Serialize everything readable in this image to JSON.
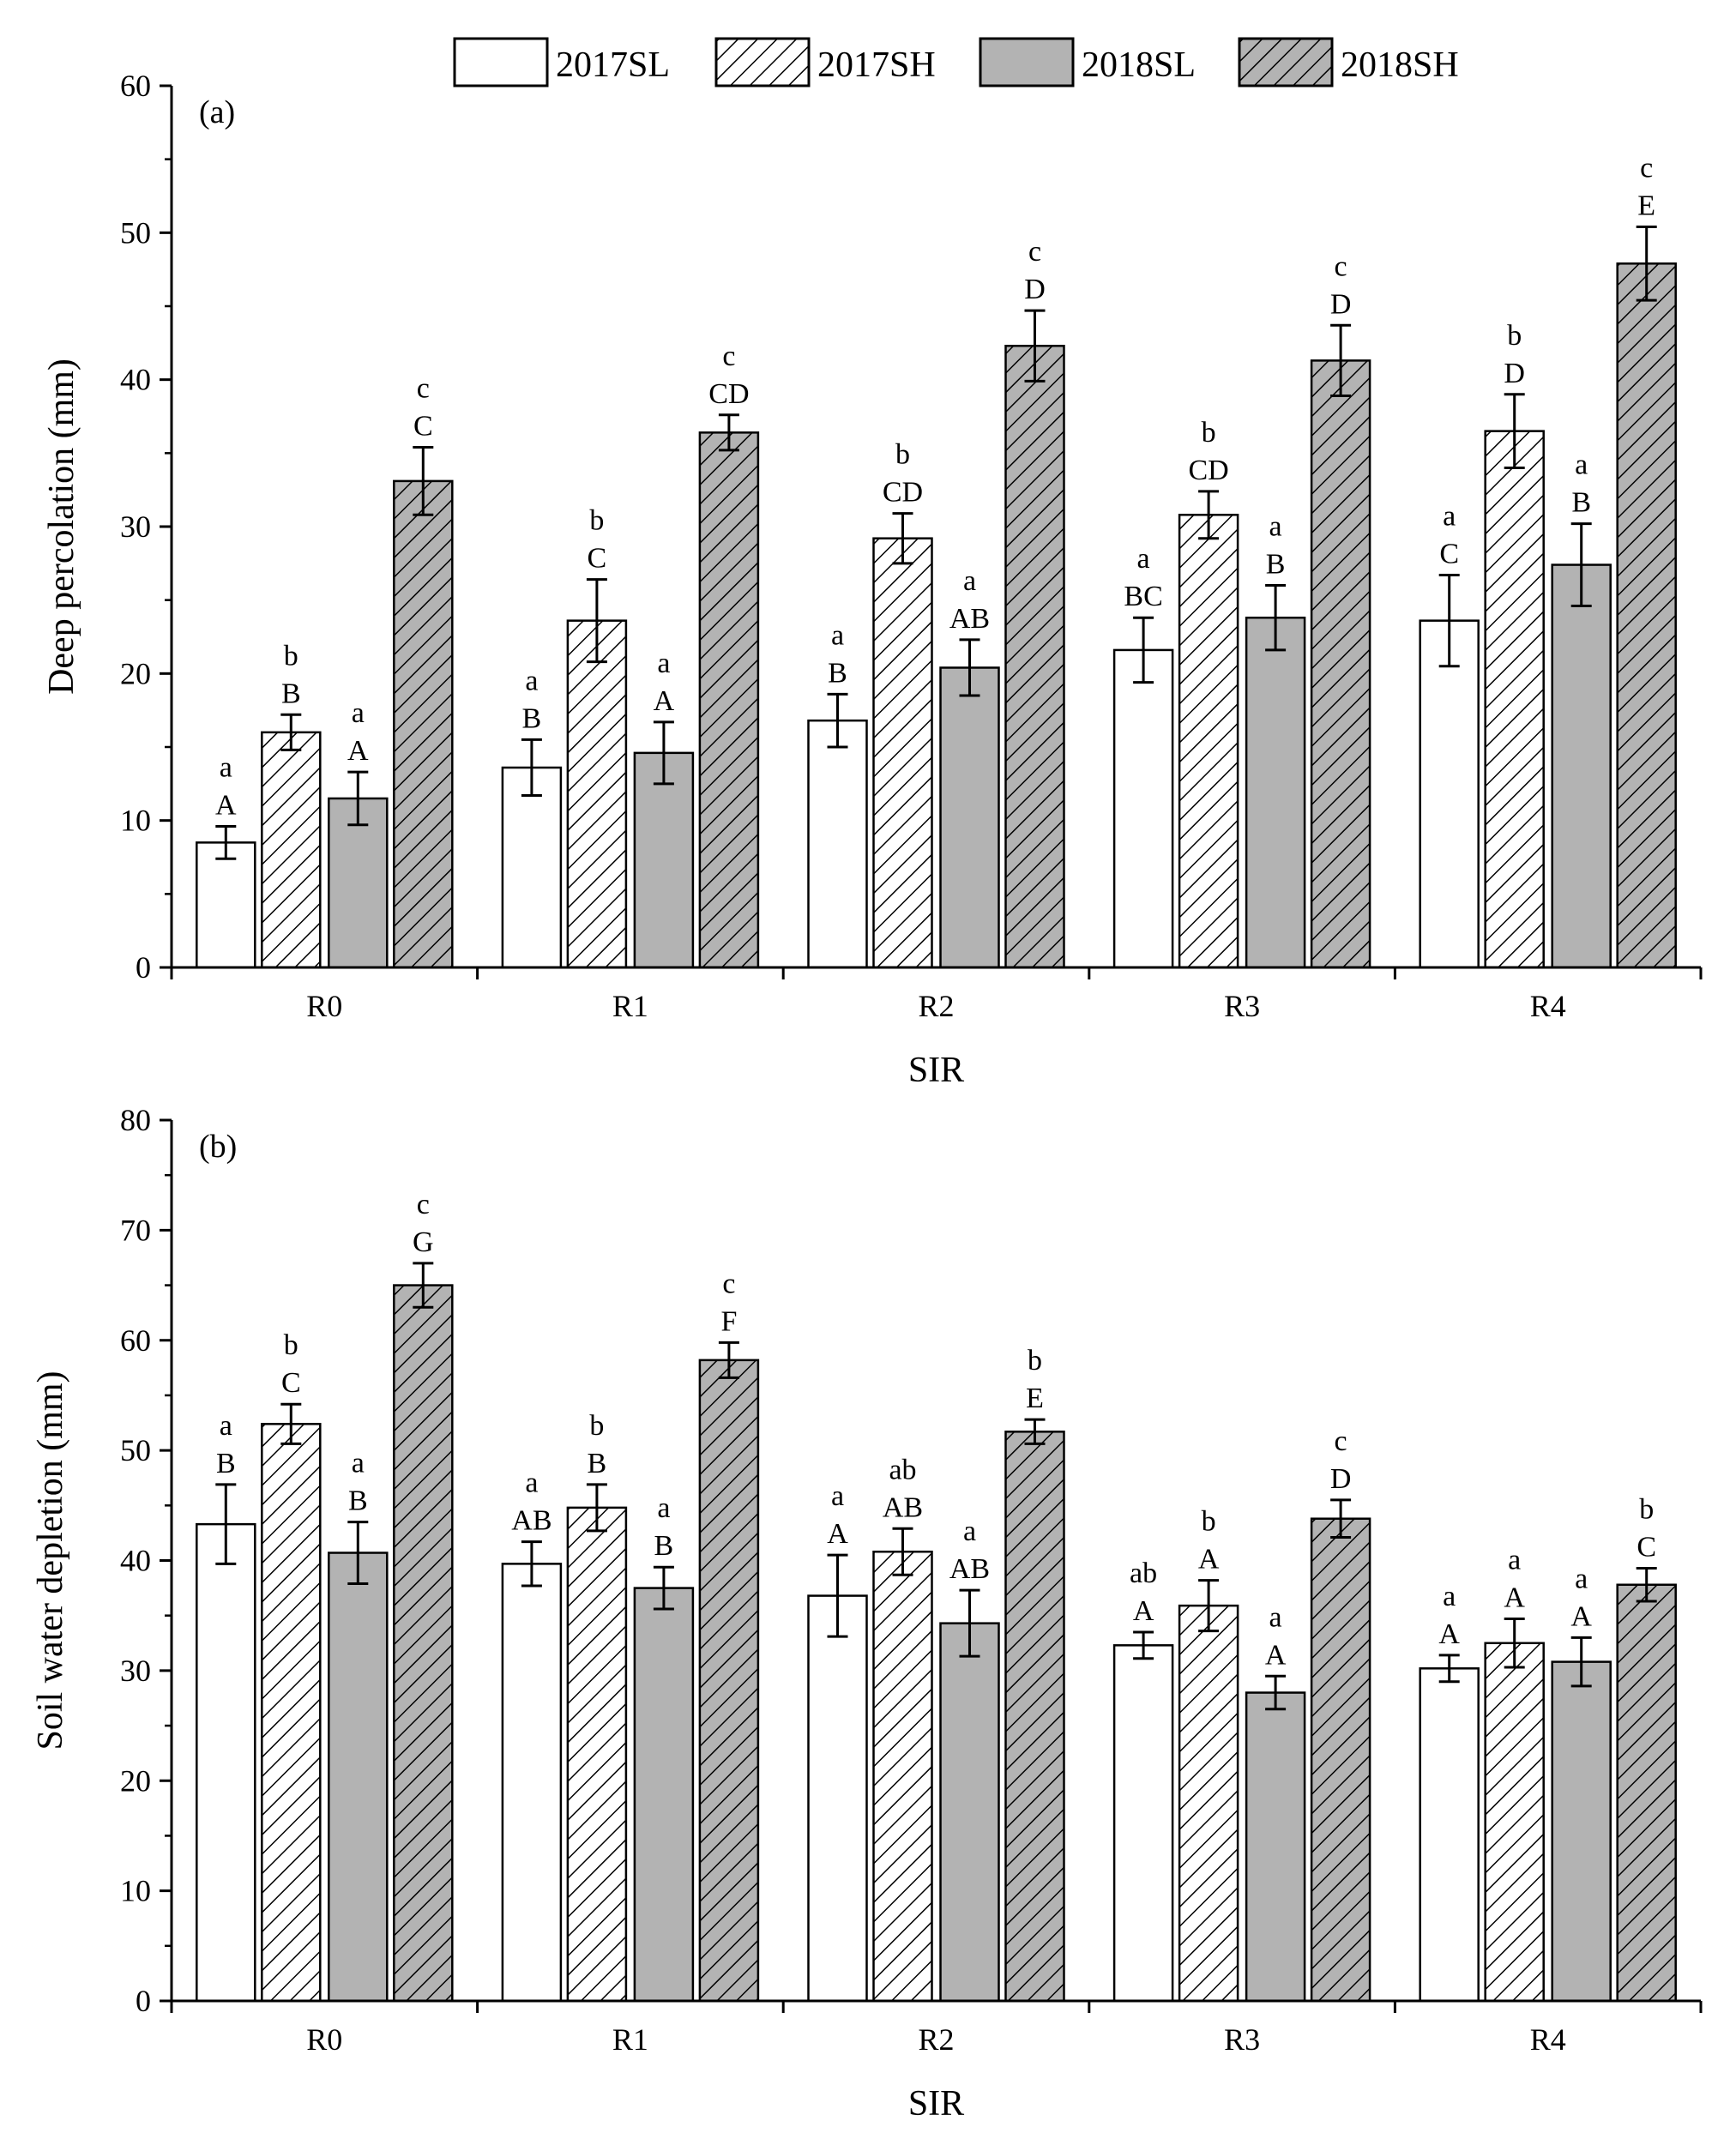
{
  "legend": [
    {
      "key": "2017SL",
      "label": "2017SL"
    },
    {
      "key": "2017SH",
      "label": "2017SH"
    },
    {
      "key": "2018SL",
      "label": "2018SL"
    },
    {
      "key": "2018SH",
      "label": "2018SH"
    }
  ],
  "colors": {
    "2017SL": "#ffffff",
    "2017SH": "#ffffff",
    "2018SL": "#b3b3b3",
    "2018SH": "#b3b3b3",
    "stroke": "#000000"
  },
  "chart_data": [
    {
      "type": "bar",
      "panel_label": "(a)",
      "xlabel": "SIR",
      "ylabel": "Deep percolation (mm)",
      "ylim": [
        0,
        60
      ],
      "yticks": [
        "0",
        "10",
        "20",
        "30",
        "40",
        "50",
        "60"
      ],
      "categories": [
        "R0",
        "R1",
        "R2",
        "R3",
        "R4"
      ],
      "series": [
        {
          "name": "2017SL",
          "values": [
            8.5,
            13.6,
            16.8,
            21.6,
            23.6
          ],
          "errors": [
            1.1,
            1.9,
            1.8,
            2.2,
            3.1
          ],
          "lower": [
            "a",
            "a",
            "a",
            "a",
            "a"
          ],
          "upper": [
            "A",
            "B",
            "B",
            "BC",
            "C"
          ]
        },
        {
          "name": "2017SH",
          "values": [
            16.0,
            23.6,
            29.2,
            30.8,
            36.5
          ],
          "errors": [
            1.2,
            2.8,
            1.7,
            1.6,
            2.5
          ],
          "lower": [
            "b",
            "b",
            "b",
            "b",
            "b"
          ],
          "upper": [
            "B",
            "C",
            "CD",
            "CD",
            "D"
          ]
        },
        {
          "name": "2018SL",
          "values": [
            11.5,
            14.6,
            20.4,
            23.8,
            27.4
          ],
          "errors": [
            1.8,
            2.1,
            1.9,
            2.2,
            2.8
          ],
          "lower": [
            "a",
            "a",
            "a",
            "a",
            "a"
          ],
          "upper": [
            "A",
            "A",
            "AB",
            "B",
            "B"
          ]
        },
        {
          "name": "2018SH",
          "values": [
            33.1,
            36.4,
            42.3,
            41.3,
            47.9
          ],
          "errors": [
            2.3,
            1.2,
            2.4,
            2.4,
            2.5
          ],
          "lower": [
            "c",
            "c",
            "c",
            "c",
            "c"
          ],
          "upper": [
            "C",
            "CD",
            "D",
            "D",
            "E"
          ]
        }
      ]
    },
    {
      "type": "bar",
      "panel_label": "(b)",
      "xlabel": "SIR",
      "ylabel": "Soil water depletion (mm)",
      "ylim": [
        0,
        80
      ],
      "yticks": [
        "0",
        "10",
        "20",
        "30",
        "40",
        "50",
        "60",
        "70",
        "80"
      ],
      "categories": [
        "R0",
        "R1",
        "R2",
        "R3",
        "R4"
      ],
      "series": [
        {
          "name": "2017SL",
          "values": [
            43.3,
            39.7,
            36.8,
            32.3,
            30.2
          ],
          "errors": [
            3.6,
            2.0,
            3.7,
            1.2,
            1.2
          ],
          "lower": [
            "a",
            "a",
            "a",
            "ab",
            "a"
          ],
          "upper": [
            "B",
            "AB",
            "A",
            "A",
            "A"
          ]
        },
        {
          "name": "2017SH",
          "values": [
            52.4,
            44.8,
            40.8,
            35.9,
            32.5
          ],
          "errors": [
            1.8,
            2.1,
            2.1,
            2.3,
            2.2
          ],
          "lower": [
            "b",
            "b",
            "ab",
            "b",
            "a"
          ],
          "upper": [
            "C",
            "B",
            "AB",
            "A",
            "A"
          ]
        },
        {
          "name": "2018SL",
          "values": [
            40.7,
            37.5,
            34.3,
            28.0,
            30.8
          ],
          "errors": [
            2.8,
            1.9,
            3.0,
            1.5,
            2.2
          ],
          "lower": [
            "a",
            "a",
            "a",
            "a",
            "a"
          ],
          "upper": [
            "B",
            "B",
            "AB",
            "A",
            "A"
          ]
        },
        {
          "name": "2018SH",
          "values": [
            65.0,
            58.2,
            51.7,
            43.8,
            37.8
          ],
          "errors": [
            2.0,
            1.6,
            1.1,
            1.7,
            1.5
          ],
          "lower": [
            "c",
            "c",
            "b",
            "c",
            "b"
          ],
          "upper": [
            "G",
            "F",
            "E",
            "D",
            "C"
          ]
        }
      ]
    }
  ]
}
